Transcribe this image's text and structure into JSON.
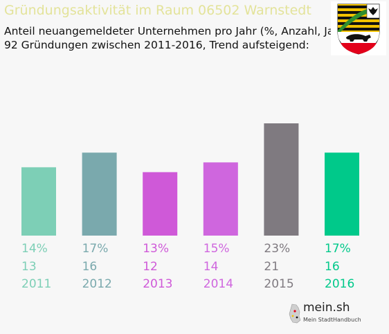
{
  "header": {
    "title": "Gründungsaktivität im Raum 06502 Warnstedt",
    "subtitle_line1": "Anteil neuangemeldeter Unternehmen pro Jahr (%, Anzahl, Jahr)",
    "subtitle_line2": "92 Gründungen zwischen 2011-2016, Trend aufsteigend:"
  },
  "logo": {
    "name": "mein.sh",
    "tagline": "Mein StadtHandbuch",
    "icon": "germany-map-icon"
  },
  "coat_of_arms": {
    "icon": "saxony-anhalt-coat-of-arms-icon"
  },
  "chart_data": {
    "type": "bar",
    "categories": [
      "2011",
      "2012",
      "2013",
      "2014",
      "2015",
      "2016"
    ],
    "values": [
      14,
      17,
      13,
      15,
      23,
      17
    ],
    "percent_labels": [
      "14%",
      "17%",
      "13%",
      "15%",
      "23%",
      "17%"
    ],
    "counts": [
      "13",
      "16",
      "12",
      "14",
      "21",
      "16"
    ],
    "colors": [
      "#7dcfb6",
      "#7aa9ad",
      "#cf59d8",
      "#cf66de",
      "#7f7a80",
      "#00c98a"
    ],
    "ylim": [
      0,
      23
    ],
    "grid": false,
    "legend": "none"
  }
}
